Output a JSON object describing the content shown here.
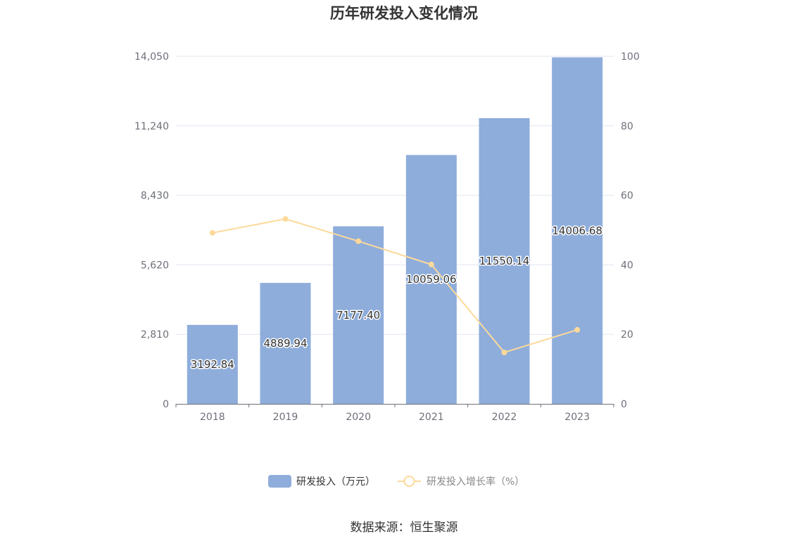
{
  "chart_data": {
    "type": "bar",
    "title": "历年研发投入变化情况",
    "categories": [
      "2018",
      "2019",
      "2020",
      "2021",
      "2022",
      "2023"
    ],
    "series": [
      {
        "name": "研发投入（万元）",
        "type": "bar",
        "axis": "left",
        "values": [
          3192.84,
          4889.94,
          7177.4,
          10059.06,
          11550.14,
          14006.68
        ],
        "value_labels": [
          "3192.84",
          "4889.94",
          "7177.40",
          "10059.06",
          "11550.14",
          "14006.68"
        ],
        "color": "#8eaddb"
      },
      {
        "name": "研发投入增长率（%）",
        "type": "line",
        "axis": "right",
        "values": [
          49.2,
          53.2,
          46.8,
          40.1,
          14.8,
          21.3
        ],
        "color": "#fdd99a"
      }
    ],
    "y_left": {
      "ticks": [
        "0",
        "2,810",
        "5,620",
        "8,430",
        "11,240",
        "14,050"
      ],
      "ylim": [
        0,
        14050
      ]
    },
    "y_right": {
      "ticks": [
        "0",
        "20",
        "40",
        "60",
        "80",
        "100"
      ],
      "ylim": [
        0,
        100
      ]
    },
    "grid": true,
    "legend_position": "bottom-center",
    "source_text": "数据来源：恒生聚源"
  }
}
